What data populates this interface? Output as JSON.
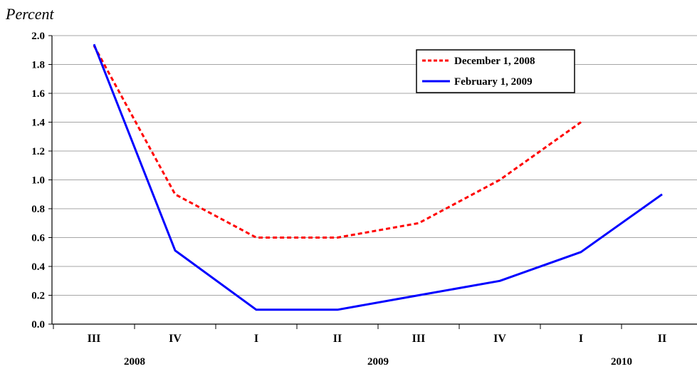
{
  "chart_data": {
    "type": "line",
    "ylabel": "Percent",
    "ylim": [
      0.0,
      2.0
    ],
    "yticks": [
      "0.0",
      "0.2",
      "0.4",
      "0.6",
      "0.8",
      "1.0",
      "1.2",
      "1.4",
      "1.6",
      "1.8",
      "2.0"
    ],
    "categories": [
      "III",
      "IV",
      "I",
      "II",
      "III",
      "IV",
      "I",
      "II"
    ],
    "year_groups": [
      {
        "label": "2008",
        "start": 0,
        "end": 1
      },
      {
        "label": "2009",
        "start": 2,
        "end": 5
      },
      {
        "label": "2010",
        "start": 6,
        "end": 7
      }
    ],
    "series": [
      {
        "name": "December 1, 2008",
        "color": "#ff0000",
        "style": "dashed",
        "values": [
          1.93,
          0.9,
          0.6,
          0.6,
          0.7,
          1.0,
          1.4,
          null
        ]
      },
      {
        "name": "February 1, 2009",
        "color": "#0000ff",
        "style": "solid",
        "values": [
          1.94,
          0.51,
          0.1,
          0.1,
          0.2,
          0.3,
          0.5,
          0.9
        ]
      }
    ],
    "grid": true,
    "legend_position": "top-right"
  }
}
